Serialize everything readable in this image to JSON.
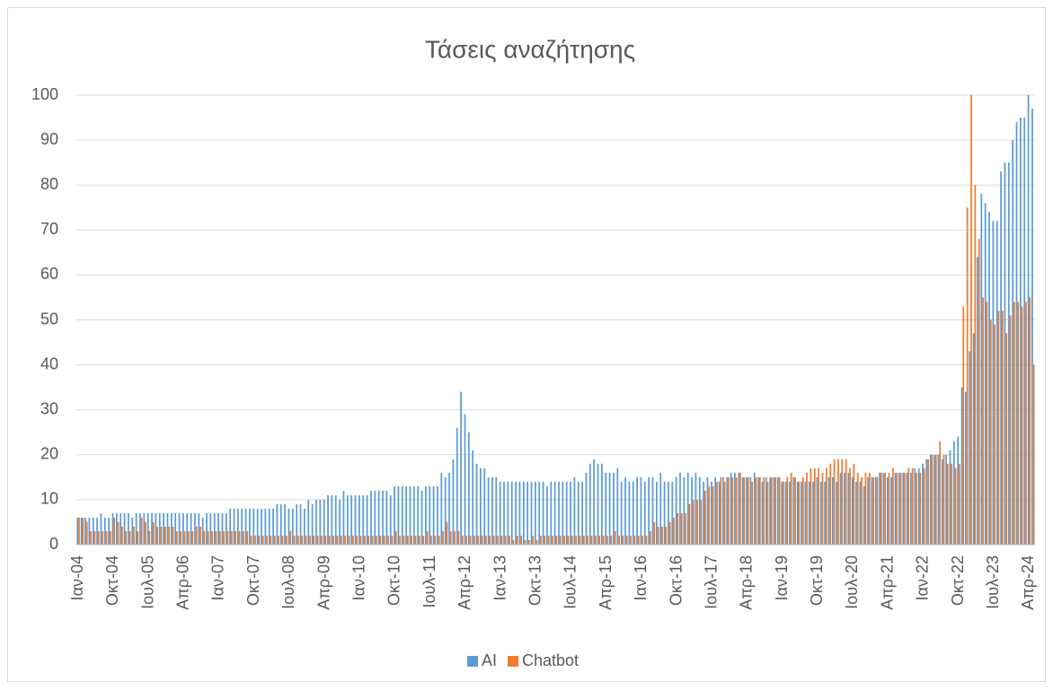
{
  "chart_data": {
    "type": "bar",
    "title": "Τάσεις αναζήτησης",
    "categories": [
      "Ιαν-04",
      null,
      null,
      null,
      null,
      null,
      null,
      null,
      null,
      "Οκτ-04",
      null,
      null,
      null,
      null,
      null,
      null,
      null,
      null,
      "Ιουλ-05",
      null,
      null,
      null,
      null,
      null,
      null,
      null,
      null,
      "Απρ-06",
      null,
      null,
      null,
      null,
      null,
      null,
      null,
      null,
      "Ιαν-07",
      null,
      null,
      null,
      null,
      null,
      null,
      null,
      null,
      "Οκτ-07",
      null,
      null,
      null,
      null,
      null,
      null,
      null,
      null,
      "Ιουλ-08",
      null,
      null,
      null,
      null,
      null,
      null,
      null,
      null,
      "Απρ-09",
      null,
      null,
      null,
      null,
      null,
      null,
      null,
      null,
      "Ιαν-10",
      null,
      null,
      null,
      null,
      null,
      null,
      null,
      null,
      "Οκτ-10",
      null,
      null,
      null,
      null,
      null,
      null,
      null,
      null,
      "Ιουλ-11",
      null,
      null,
      null,
      null,
      null,
      null,
      null,
      null,
      "Απρ-12",
      null,
      null,
      null,
      null,
      null,
      null,
      null,
      null,
      "Ιαν-13",
      null,
      null,
      null,
      null,
      null,
      null,
      null,
      null,
      "Οκτ-13",
      null,
      null,
      null,
      null,
      null,
      null,
      null,
      null,
      "Ιουλ-14",
      null,
      null,
      null,
      null,
      null,
      null,
      null,
      null,
      "Απρ-15",
      null,
      null,
      null,
      null,
      null,
      null,
      null,
      null,
      "Ιαν-16",
      null,
      null,
      null,
      null,
      null,
      null,
      null,
      null,
      "Οκτ-16",
      null,
      null,
      null,
      null,
      null,
      null,
      null,
      null,
      "Ιουλ-17",
      null,
      null,
      null,
      null,
      null,
      null,
      null,
      null,
      "Απρ-18",
      null,
      null,
      null,
      null,
      null,
      null,
      null,
      null,
      "Ιαν-19",
      null,
      null,
      null,
      null,
      null,
      null,
      null,
      null,
      "Οκτ-19",
      null,
      null,
      null,
      null,
      null,
      null,
      null,
      null,
      "Ιουλ-20",
      null,
      null,
      null,
      null,
      null,
      null,
      null,
      null,
      "Απρ-21",
      null,
      null,
      null,
      null,
      null,
      null,
      null,
      null,
      "Ιαν-22",
      null,
      null,
      null,
      null,
      null,
      null,
      null,
      null,
      "Οκτ-22",
      null,
      null,
      null,
      null,
      null,
      null,
      null,
      null,
      "Ιουλ-23",
      null,
      null,
      null,
      null,
      null,
      null,
      null,
      null,
      "Απρ-24",
      null
    ],
    "series": [
      {
        "name": "AI",
        "color": "#5b9bd5",
        "values": [
          6,
          6,
          6,
          6,
          6,
          6,
          7,
          6,
          6,
          7,
          7,
          7,
          7,
          7,
          6,
          7,
          7,
          7,
          7,
          7,
          7,
          7,
          7,
          7,
          7,
          7,
          7,
          7,
          7,
          7,
          7,
          7,
          6,
          7,
          7,
          7,
          7,
          7,
          7,
          8,
          8,
          8,
          8,
          8,
          8,
          8,
          8,
          8,
          8,
          8,
          8,
          9,
          9,
          9,
          8,
          8,
          9,
          9,
          8,
          10,
          9,
          10,
          10,
          10,
          11,
          11,
          11,
          10,
          12,
          11,
          11,
          11,
          11,
          11,
          11,
          12,
          12,
          12,
          12,
          12,
          11,
          13,
          13,
          13,
          13,
          13,
          13,
          13,
          12,
          13,
          13,
          13,
          13,
          16,
          15,
          16,
          19,
          26,
          34,
          29,
          25,
          21,
          18,
          17,
          17,
          15,
          15,
          15,
          14,
          14,
          14,
          14,
          14,
          14,
          14,
          14,
          14,
          14,
          14,
          14,
          13,
          14,
          14,
          14,
          14,
          14,
          14,
          15,
          14,
          14,
          16,
          18,
          19,
          18,
          18,
          16,
          16,
          16,
          17,
          14,
          15,
          14,
          14,
          15,
          15,
          14,
          15,
          15,
          14,
          16,
          14,
          14,
          14,
          15,
          16,
          15,
          16,
          15,
          16,
          15,
          14,
          15,
          14,
          15,
          14,
          15,
          15,
          16,
          16,
          16,
          15,
          15,
          15,
          16,
          15,
          14,
          15,
          15,
          15,
          15,
          14,
          14,
          14,
          15,
          14,
          14,
          14,
          14,
          14,
          15,
          14,
          14,
          15,
          15,
          14,
          16,
          16,
          16,
          15,
          14,
          14,
          13,
          15,
          15,
          15,
          16,
          16,
          15,
          15,
          16,
          16,
          16,
          16,
          16,
          17,
          17,
          18,
          19,
          20,
          20,
          20,
          19,
          20,
          21,
          23,
          24,
          35,
          34,
          43,
          47,
          64,
          78,
          76,
          74,
          72,
          72,
          83,
          85,
          85,
          90,
          94,
          95,
          95,
          100,
          97
        ]
      },
      {
        "name": "Chatbot",
        "color": "#ed7d31",
        "values": [
          6,
          6,
          5,
          3,
          3,
          3,
          3,
          3,
          3,
          6,
          5,
          4,
          3,
          3,
          4,
          3,
          6,
          5,
          3,
          5,
          4,
          4,
          4,
          4,
          4,
          3,
          3,
          3,
          3,
          3,
          4,
          4,
          3,
          3,
          3,
          3,
          3,
          3,
          3,
          3,
          3,
          3,
          3,
          3,
          2,
          2,
          2,
          2,
          2,
          2,
          2,
          2,
          2,
          2,
          3,
          2,
          2,
          2,
          2,
          2,
          2,
          2,
          2,
          2,
          2,
          2,
          2,
          2,
          2,
          2,
          2,
          2,
          2,
          2,
          2,
          2,
          2,
          2,
          2,
          2,
          2,
          3,
          2,
          2,
          2,
          2,
          2,
          2,
          2,
          3,
          2,
          2,
          2,
          3,
          5,
          3,
          3,
          3,
          2,
          2,
          2,
          2,
          2,
          2,
          2,
          2,
          2,
          2,
          2,
          2,
          2,
          1,
          2,
          2,
          1,
          1,
          2,
          1,
          2,
          2,
          2,
          2,
          2,
          2,
          2,
          2,
          2,
          2,
          2,
          2,
          2,
          2,
          2,
          2,
          2,
          2,
          2,
          3,
          2,
          2,
          2,
          2,
          2,
          2,
          2,
          2,
          3,
          5,
          4,
          4,
          4,
          5,
          6,
          7,
          7,
          7,
          9,
          10,
          10,
          10,
          12,
          13,
          13,
          14,
          15,
          14,
          15,
          15,
          15,
          16,
          15,
          15,
          14,
          15,
          15,
          15,
          14,
          15,
          15,
          15,
          14,
          15,
          16,
          15,
          14,
          15,
          16,
          17,
          17,
          17,
          16,
          17,
          18,
          19,
          19,
          19,
          19,
          17,
          18,
          16,
          15,
          16,
          16,
          15,
          15,
          16,
          16,
          16,
          17,
          16,
          16,
          16,
          17,
          17,
          16,
          16,
          17,
          19,
          20,
          20,
          23,
          20,
          18,
          18,
          17,
          18,
          53,
          75,
          100,
          80,
          68,
          55,
          54,
          50,
          49,
          52,
          52,
          47,
          51,
          54,
          54,
          53,
          54,
          55,
          40
        ]
      }
    ],
    "ylim": [
      0,
      100
    ],
    "yticks": [
      0,
      10,
      20,
      30,
      40,
      50,
      60,
      70,
      80,
      90,
      100
    ],
    "grid": true,
    "legend": "bottom"
  }
}
